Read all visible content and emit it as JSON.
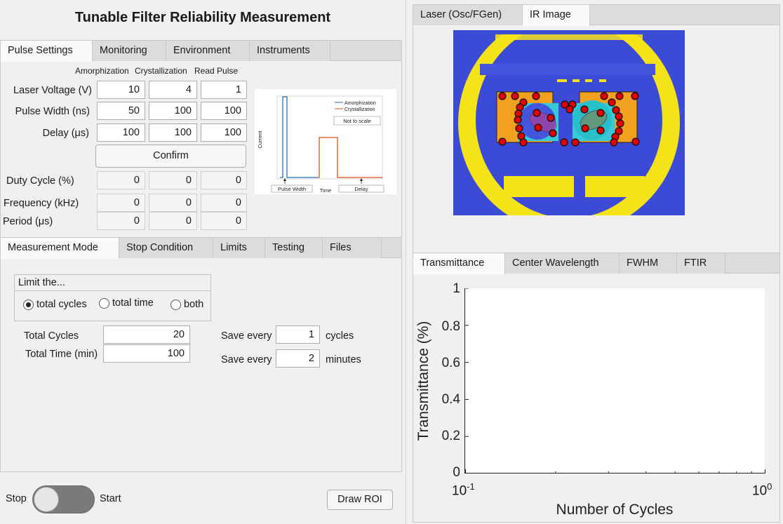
{
  "app": {
    "title": "Tunable Filter Reliability Measurement"
  },
  "top_tabs": [
    "Pulse Settings",
    "Monitoring",
    "Environment",
    "Instruments"
  ],
  "pulse": {
    "columns": [
      "Amorphization",
      "Crystallization",
      "Read Pulse"
    ],
    "rows": [
      {
        "label": "Laser Voltage (V)",
        "values": [
          "10",
          "4",
          "1"
        ]
      },
      {
        "label": "Pulse Width (ns)",
        "values": [
          "50",
          "100",
          "100"
        ]
      },
      {
        "label": "Delay (μs)",
        "values": [
          "100",
          "100",
          "100"
        ]
      }
    ],
    "confirm_label": "Confirm",
    "derived": [
      {
        "label": "Duty Cycle (%)",
        "values": [
          "0",
          "0",
          "0"
        ]
      },
      {
        "label": "Frequency (kHz)",
        "values": [
          "0",
          "0",
          "0"
        ]
      },
      {
        "label": "Period (μs)",
        "values": [
          "0",
          "0",
          "0"
        ]
      }
    ]
  },
  "pulse_diagram": {
    "legend": [
      "Amorphization",
      "Crystallization"
    ],
    "note": "Not to scale",
    "ylabel": "Current",
    "xlabel": "Time",
    "pulse_width_label": "Pulse Width",
    "delay_label": "Delay",
    "colors": {
      "amorphization": "#1f6fb5",
      "crystallization": "#d95319"
    }
  },
  "mode_tabs": [
    "Measurement Mode",
    "Stop Condition",
    "Limits",
    "Testing",
    "Files"
  ],
  "measurement": {
    "group_title": "Limit the...",
    "options": [
      "total cycles",
      "total time",
      "both"
    ],
    "selected": "total cycles",
    "total_cycles_label": "Total Cycles",
    "total_cycles": "20",
    "total_time_label": "Total Time (min)",
    "total_time": "100",
    "save_every_label": "Save every",
    "save_cycles": "1",
    "cycles_unit": "cycles",
    "save_minutes": "2",
    "minutes_unit": "minutes"
  },
  "run": {
    "stop_label": "Stop",
    "start_label": "Start",
    "draw_roi_label": "Draw ROI"
  },
  "image_tabs": [
    "Laser (Osc/FGen)",
    "IR Image"
  ],
  "plot_tabs": [
    "Transmittance",
    "Center Wavelength",
    "FWHM",
    "FTIR"
  ],
  "plot": {
    "type": "line",
    "ylabel": "Transmittance (%)",
    "xlabel": "Number of Cycles",
    "yticks": [
      "0",
      "0.2",
      "0.4",
      "0.6",
      "0.8",
      "1"
    ],
    "xscale": "log",
    "xticks": [
      {
        "base": "10",
        "exp": "-1"
      },
      {
        "base": "10",
        "exp": "0"
      }
    ],
    "ylim": [
      0,
      1
    ],
    "xlim": [
      0.1,
      1
    ],
    "series": []
  },
  "colors": {
    "roi_point": "#e00000",
    "ir_background": "#3c4bd6"
  }
}
